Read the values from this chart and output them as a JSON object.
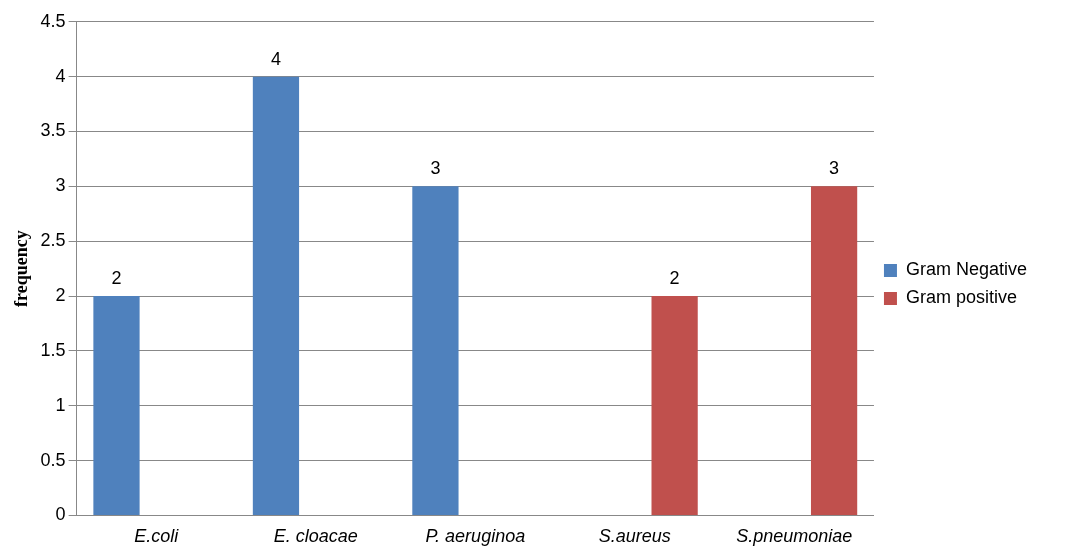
{
  "chart_data": {
    "type": "bar",
    "ylabel": "frequency",
    "categories": [
      "E.coli",
      "E. cloacae",
      "P. aeruginoa",
      "S.aureus",
      "S.pneumoniae"
    ],
    "series": [
      {
        "name": "Gram Negative",
        "color": "#4f81bd",
        "values": [
          2,
          4,
          3,
          null,
          null
        ]
      },
      {
        "name": "Gram positive",
        "color": "#c0504d",
        "values": [
          null,
          null,
          null,
          2,
          3
        ]
      }
    ],
    "ylim": [
      0,
      4.5
    ],
    "yticks": [
      0,
      0.5,
      1,
      1.5,
      2,
      2.5,
      3,
      3.5,
      4,
      4.5
    ],
    "grid": "y",
    "legend": "right",
    "data_labels": true
  }
}
